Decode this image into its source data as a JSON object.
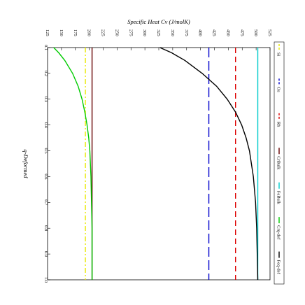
{
  "chart_data": {
    "type": "line",
    "title": "",
    "xlabel": "q-Deformed",
    "ylabel": "Specific Heat Cv (J/molK)",
    "orientation": "rotated",
    "xlim": [
      0.1,
      1.0
    ],
    "ylim": [
      125,
      525
    ],
    "x_ticks": [
      "0.1",
      "0.2",
      "0.3",
      "0.4",
      "0.5",
      "0.6",
      "0.7",
      "0.8",
      "0.9",
      "1.0"
    ],
    "y_ticks": [
      "125",
      "150",
      "175",
      "200",
      "225",
      "250",
      "275",
      "300",
      "325",
      "350",
      "375",
      "400",
      "425",
      "450",
      "475",
      "500",
      "525"
    ],
    "legend_position": "right",
    "series": [
      {
        "name": "Si",
        "color": "#e8e800",
        "style": "dashdot",
        "x": [
          0.1,
          1.0
        ],
        "y": [
          193,
          193
        ]
      },
      {
        "name": "Os",
        "color": "#0000cc",
        "style": "longdash",
        "x": [
          0.1,
          1.0
        ],
        "y": [
          415,
          415
        ]
      },
      {
        "name": "Rh",
        "color": "#dd0000",
        "style": "dash",
        "x": [
          0.1,
          1.0
        ],
        "y": [
          463,
          463
        ]
      },
      {
        "name": "CrBulk",
        "color": "#660000",
        "style": "solid",
        "x": [
          0.1,
          1.0
        ],
        "y": [
          205,
          205
        ]
      },
      {
        "name": "FeBulk",
        "color": "#00cccc",
        "style": "solid",
        "x": [
          0.1,
          1.0
        ],
        "y": [
          503,
          503
        ]
      },
      {
        "name": "Crq-def",
        "color": "#00cc00",
        "style": "solid",
        "x": [
          0.1,
          0.12,
          0.15,
          0.2,
          0.25,
          0.3,
          0.35,
          0.4,
          0.45,
          0.5,
          0.6,
          0.7,
          0.8,
          0.9,
          1.0
        ],
        "y": [
          136,
          145,
          156,
          170,
          180,
          187,
          192,
          196,
          199,
          201,
          203,
          204,
          205,
          205,
          205
        ]
      },
      {
        "name": "Feq-def",
        "color": "#000000",
        "style": "solid",
        "x": [
          0.1,
          0.12,
          0.15,
          0.2,
          0.25,
          0.3,
          0.35,
          0.4,
          0.45,
          0.5,
          0.6,
          0.7,
          0.8,
          0.9,
          1.0
        ],
        "y": [
          327,
          348,
          372,
          403,
          429,
          448,
          463,
          474,
          482,
          488,
          495,
          499,
          501,
          502,
          503
        ]
      }
    ]
  }
}
